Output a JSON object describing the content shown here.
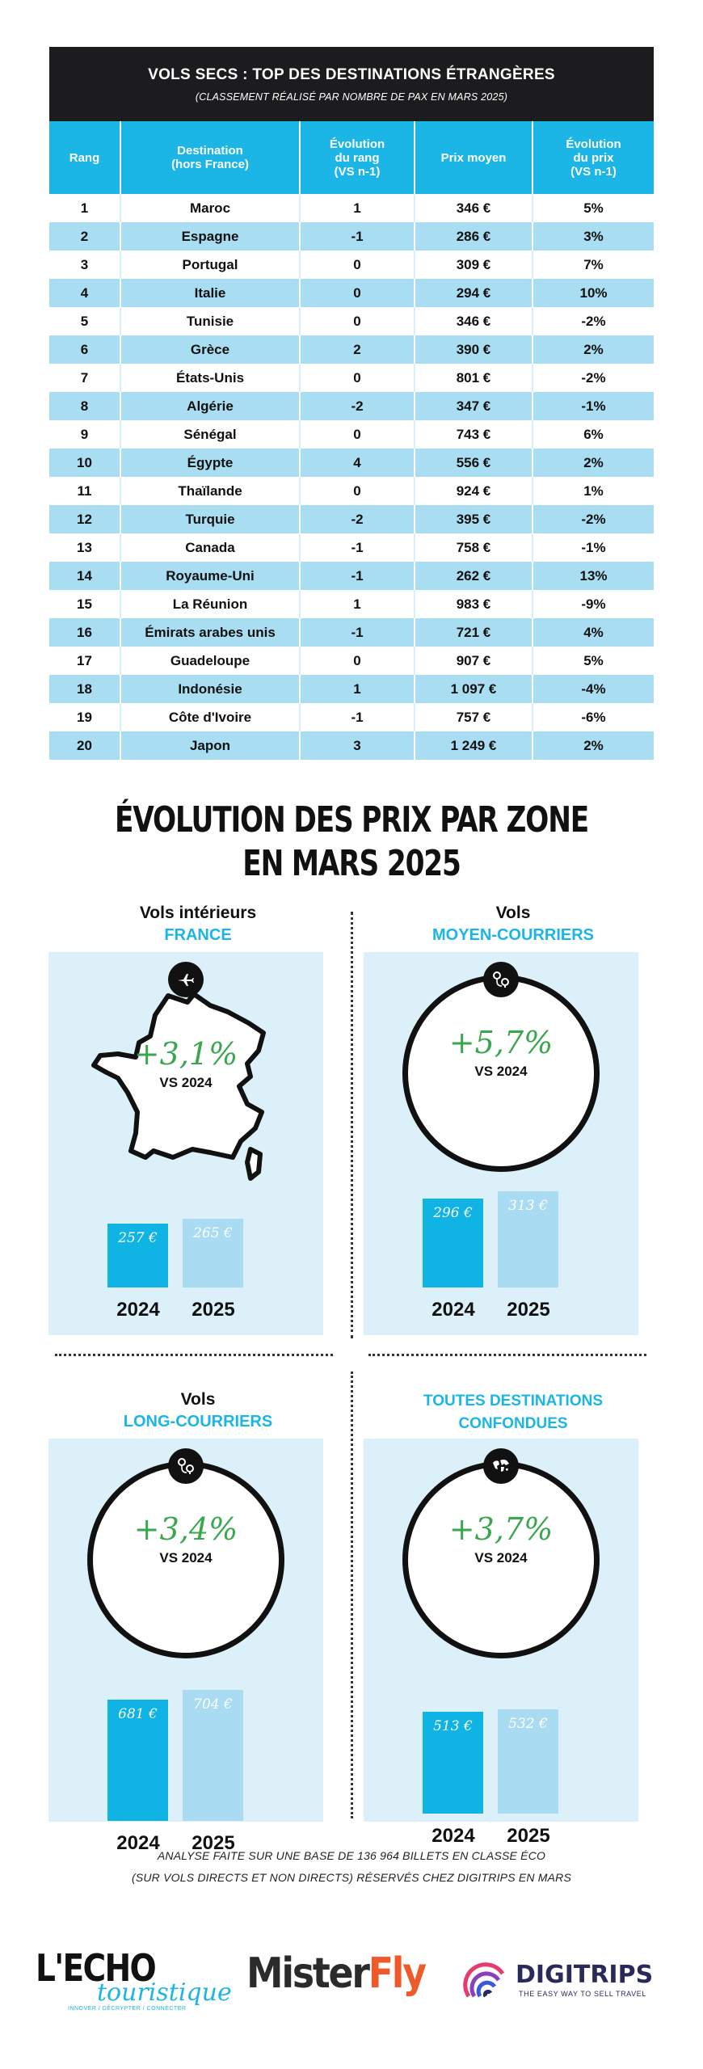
{
  "table": {
    "title": "VOLS SECS : TOP DES DESTINATIONS ÉTRANGÈRES",
    "subtitle": "(CLASSEMENT RÉALISÉ PAR NOMBRE DE PAX EN MARS 2025)",
    "headers": [
      "Rang",
      "Destination\n(hors France)",
      "Évolution\ndu rang\n(VS n-1)",
      "Prix moyen",
      "Évolution\ndu prix\n(VS n-1)"
    ],
    "rows": [
      [
        "1",
        "Maroc",
        "1",
        "346 €",
        "5%"
      ],
      [
        "2",
        "Espagne",
        "-1",
        "286 €",
        "3%"
      ],
      [
        "3",
        "Portugal",
        "0",
        "309 €",
        "7%"
      ],
      [
        "4",
        "Italie",
        "0",
        "294 €",
        "10%"
      ],
      [
        "5",
        "Tunisie",
        "0",
        "346 €",
        "-2%"
      ],
      [
        "6",
        "Grèce",
        "2",
        "390 €",
        "2%"
      ],
      [
        "7",
        "États-Unis",
        "0",
        "801 €",
        "-2%"
      ],
      [
        "8",
        "Algérie",
        "-2",
        "347 €",
        "-1%"
      ],
      [
        "9",
        "Sénégal",
        "0",
        "743 €",
        "6%"
      ],
      [
        "10",
        "Égypte",
        "4",
        "556 €",
        "2%"
      ],
      [
        "11",
        "Thaïlande",
        "0",
        "924 €",
        "1%"
      ],
      [
        "12",
        "Turquie",
        "-2",
        "395 €",
        "-2%"
      ],
      [
        "13",
        "Canada",
        "-1",
        "758 €",
        "-1%"
      ],
      [
        "14",
        "Royaume-Uni",
        "-1",
        "262 €",
        "13%"
      ],
      [
        "15",
        "La Réunion",
        "1",
        "983 €",
        "-9%"
      ],
      [
        "16",
        "Émirats arabes unis",
        "-1",
        "721 €",
        "4%"
      ],
      [
        "17",
        "Guadeloupe",
        "0",
        "907 €",
        "5%"
      ],
      [
        "18",
        "Indonésie",
        "1",
        "1 097 €",
        "-4%"
      ],
      [
        "19",
        "Côte d'Ivoire",
        "-1",
        "757 €",
        "-6%"
      ],
      [
        "20",
        "Japon",
        "3",
        "1 249 €",
        "2%"
      ]
    ]
  },
  "section_title_line1": "ÉVOLUTION DES PRIX PAR ZONE",
  "section_title_line2": "EN MARS 2025",
  "colors": {
    "accent": "#1bb5e6",
    "bar2024": "#0fb3e4",
    "bar2025": "#a9dcf2",
    "panel_bg": "#dcf0fa",
    "growth": "#3aa64e",
    "header_dark": "#1c1c1e"
  },
  "chart_data": [
    {
      "type": "bar",
      "label1": "Vols intérieurs",
      "label2": "FRANCE",
      "icon": "plane-icon",
      "growth": "+3,1%",
      "vs": "VS 2024",
      "categories": [
        "2024",
        "2025"
      ],
      "values": [
        257,
        265
      ],
      "value_labels": [
        "257 €",
        "265 €"
      ]
    },
    {
      "type": "bar",
      "label1": "Vols",
      "label2": "MOYEN-COURRIERS",
      "icon": "route-pin-icon",
      "growth": "+5,7%",
      "vs": "VS 2024",
      "categories": [
        "2024",
        "2025"
      ],
      "values": [
        296,
        313
      ],
      "value_labels": [
        "296 €",
        "313 €"
      ]
    },
    {
      "type": "bar",
      "label1": "Vols",
      "label2": "LONG-COURRIERS",
      "icon": "route-pin-icon",
      "growth": "+3,4%",
      "vs": "VS 2024",
      "categories": [
        "2024",
        "2025"
      ],
      "values": [
        681,
        704
      ],
      "value_labels": [
        "681 €",
        "704 €"
      ]
    },
    {
      "type": "bar",
      "label1": "",
      "label2": "TOUTES DESTINATIONS\nCONFONDUES",
      "icon": "world-map-icon",
      "growth": "+3,7%",
      "vs": "VS 2024",
      "categories": [
        "2024",
        "2025"
      ],
      "values": [
        513,
        532
      ],
      "value_labels": [
        "513 €",
        "532 €"
      ]
    }
  ],
  "footnote_line1": "ANALYSE FAITE SUR UNE BASE DE 136 964 BILLETS EN CLASSE ÉCO",
  "footnote_line2": "(SUR VOLS DIRECTS ET NON DIRECTS) RÉSERVÉS CHEZ DIGITRIPS EN MARS",
  "logos": {
    "echo_main": "L'ECHO",
    "echo_sub": "touristique",
    "echo_tag": "INNOVER / DÉCRYPTER / CONNECTER",
    "misterfly_a": "Mister",
    "misterfly_b": "Fly",
    "digitrips": "DIGITRIPS",
    "digitrips_tag": "THE EASY WAY TO SELL TRAVEL"
  }
}
